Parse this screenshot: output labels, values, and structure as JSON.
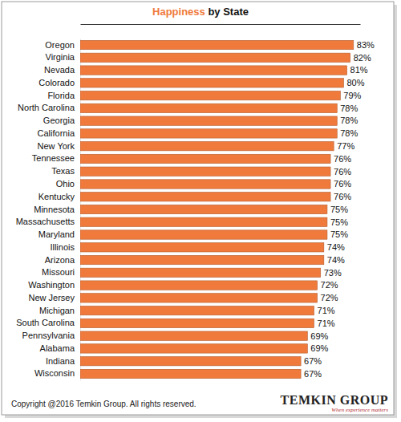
{
  "chart_data": {
    "type": "bar",
    "orientation": "horizontal",
    "title": "Happiness by State",
    "categories": [
      "Oregon",
      "Virginia",
      "Nevada",
      "Colorado",
      "Florida",
      "North Carolina",
      "Georgia",
      "California",
      "New York",
      "Tennessee",
      "Texas",
      "Ohio",
      "Kentucky",
      "Minnesota",
      "Massachusetts",
      "Maryland",
      "Illinois",
      "Arizona",
      "Missouri",
      "Washington",
      "New Jersey",
      "Michigan",
      "South Carolina",
      "Pennsylvania",
      "Alabama",
      "Indiana",
      "Wisconsin"
    ],
    "values": [
      83,
      82,
      81,
      80,
      79,
      78,
      78,
      78,
      77,
      76,
      76,
      76,
      76,
      75,
      75,
      75,
      74,
      74,
      73,
      72,
      72,
      71,
      71,
      69,
      69,
      67,
      67
    ],
    "value_labels": [
      "83%",
      "82%",
      "81%",
      "80%",
      "79%",
      "78%",
      "78%",
      "78%",
      "77%",
      "76%",
      "76%",
      "76%",
      "76%",
      "75%",
      "75%",
      "75%",
      "74%",
      "74%",
      "73%",
      "72%",
      "72%",
      "71%",
      "71%",
      "69%",
      "69%",
      "67%",
      "67%"
    ],
    "color": "#ef7a3c",
    "xlim": [
      0,
      85
    ],
    "xticks": [],
    "tick_labels": "y",
    "data_labels": true,
    "grid": false,
    "annotations": [
      "Copyright @2016 Temkin Group. All rights reserved.",
      "TEMKIN GROUP",
      "When experience matters"
    ]
  }
}
